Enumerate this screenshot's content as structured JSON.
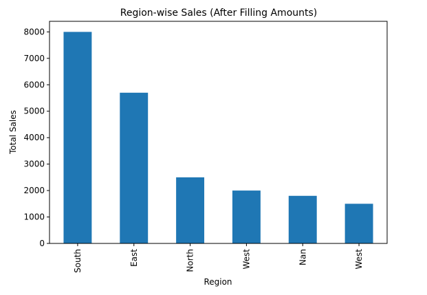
{
  "chart_data": {
    "type": "bar",
    "title": "Region-wise Sales (After Filling Amounts)",
    "xlabel": "Region",
    "ylabel": "Total Sales",
    "categories": [
      "South",
      "East",
      "North",
      "West",
      "Nan",
      "West"
    ],
    "values": [
      8000,
      5700,
      2500,
      2000,
      1800,
      1500
    ],
    "ylim": [
      0,
      8400
    ],
    "yticks": [
      0,
      1000,
      2000,
      3000,
      4000,
      5000,
      6000,
      7000,
      8000
    ],
    "ytick_labels": [
      "0",
      "1000",
      "2000",
      "3000",
      "4000",
      "5000",
      "6000",
      "7000",
      "8000"
    ],
    "bar_color": "#1f77b4",
    "grid": false,
    "legend": false
  }
}
